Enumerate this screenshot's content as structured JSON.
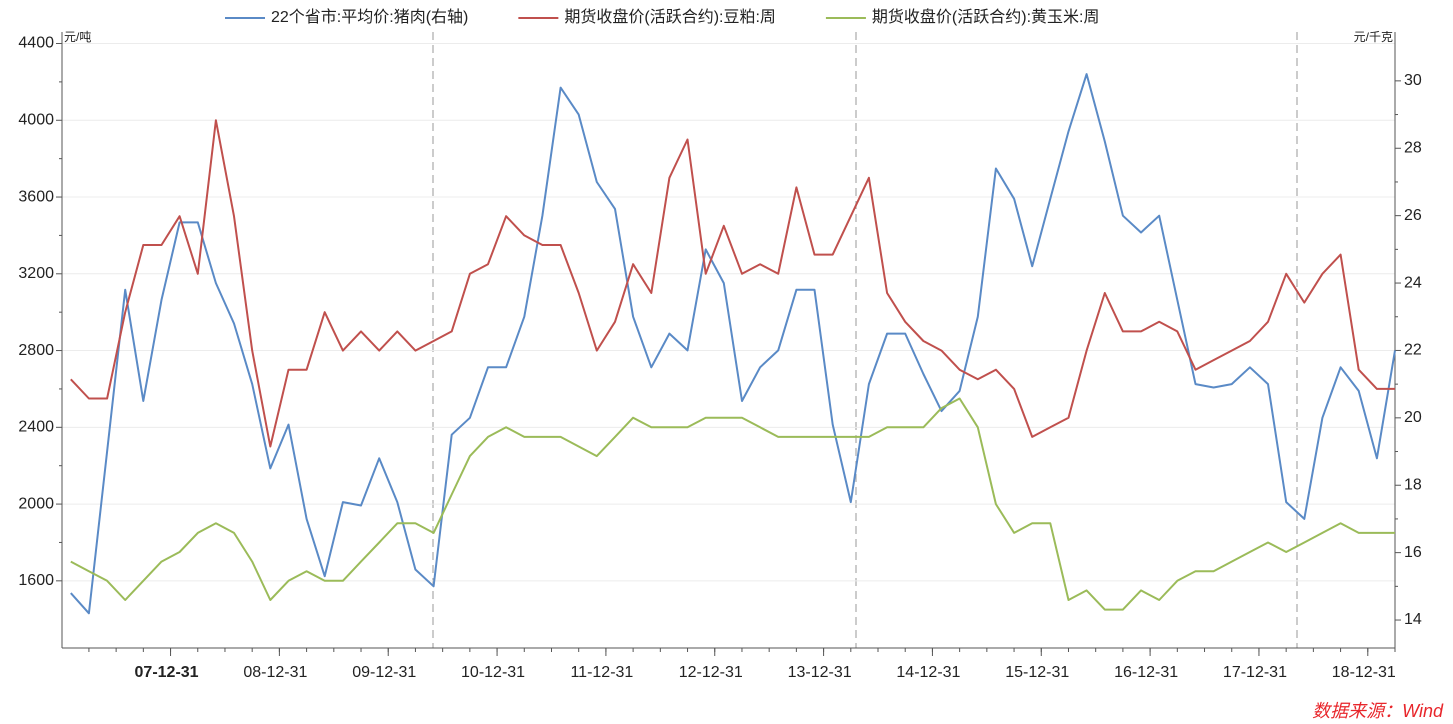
{
  "chart_data": {
    "type": "line",
    "y_label": "元/吨",
    "y2_label": "元/千克",
    "source": "数据来源：Wind",
    "x": [
      "07-01-31",
      "07-03-31",
      "07-05-31",
      "07-07-31",
      "07-09-30",
      "07-11-30",
      "08-01-31",
      "08-03-31",
      "08-05-31",
      "08-07-31",
      "08-09-30",
      "08-11-30",
      "09-01-31",
      "09-03-31",
      "09-05-31",
      "09-07-31",
      "09-09-30",
      "09-11-30",
      "10-01-31",
      "10-03-31",
      "10-05-31",
      "10-07-31",
      "10-09-30",
      "10-11-30",
      "11-01-31",
      "11-03-31",
      "11-05-31",
      "11-07-31",
      "11-09-30",
      "11-11-30",
      "12-01-31",
      "12-03-31",
      "12-05-31",
      "12-07-31",
      "12-09-30",
      "12-11-30",
      "13-01-31",
      "13-03-31",
      "13-05-31",
      "13-07-31",
      "13-09-30",
      "13-11-30",
      "14-01-31",
      "14-03-31",
      "14-05-31",
      "14-07-31",
      "14-09-30",
      "14-11-30",
      "15-01-31",
      "15-03-31",
      "15-05-31",
      "15-07-31",
      "15-09-30",
      "15-11-30",
      "16-01-31",
      "16-03-31",
      "16-05-31",
      "16-07-31",
      "16-09-30",
      "16-11-30",
      "17-01-31",
      "17-03-31",
      "17-05-31",
      "17-07-31",
      "17-09-30",
      "17-11-30",
      "18-01-31",
      "18-03-31",
      "18-05-31",
      "18-07-31",
      "18-09-30",
      "18-11-30",
      "19-01-31",
      "19-03-31"
    ],
    "xlim": [
      "07-01-01",
      "19-03-31"
    ],
    "xticks": [
      "07-12-31",
      "08-12-31",
      "09-12-31",
      "10-12-31",
      "11-12-31",
      "12-12-31",
      "13-12-31",
      "14-12-31",
      "15-12-31",
      "16-12-31",
      "17-12-31",
      "18-12-31"
    ],
    "ylim": [
      1250,
      4460
    ],
    "yticks": [
      1600,
      2000,
      2400,
      2800,
      3200,
      3600,
      4000,
      4400
    ],
    "y2lim": [
      13.17,
      31.45
    ],
    "y2ticks": [
      14,
      16,
      18,
      20,
      22,
      24,
      26,
      28,
      30
    ],
    "grid": true,
    "legend": "top",
    "series": [
      {
        "name": "22个省市:平均价:猪肉(右轴)",
        "color": "#5a8ac6",
        "axis": "y2",
        "values": [
          14.8,
          14.2,
          19,
          23.8,
          20.5,
          23.5,
          25.8,
          25.8,
          24,
          22.8,
          21,
          18.5,
          19.8,
          17,
          15.3,
          17.5,
          17.4,
          18.8,
          17.5,
          15.5,
          15,
          19.5,
          20,
          21.5,
          21.5,
          23,
          26,
          29.8,
          29,
          27,
          26.2,
          23,
          21.5,
          22.5,
          22,
          25,
          24,
          20.5,
          21.5,
          22,
          23.8,
          23.8,
          19.8,
          17.5,
          21,
          22.5,
          22.5,
          21.3,
          20.2,
          20.8,
          23,
          27.4,
          26.5,
          24.5,
          26.5,
          28.5,
          30.2,
          28.2,
          26,
          25.5,
          26,
          23.5,
          21,
          20.9,
          21,
          21.5,
          21,
          17.5,
          17,
          20,
          21.5,
          20.8,
          18.8,
          22
        ]
      },
      {
        "name": "期货收盘价(活跃合约):豆粕:周",
        "color": "#c0504d",
        "values": [
          2650,
          2550,
          2550,
          3000,
          3350,
          3350,
          3500,
          3200,
          4000,
          3500,
          2800,
          2300,
          2700,
          2700,
          3000,
          2800,
          2900,
          2800,
          2900,
          2800,
          2850,
          2900,
          3200,
          3250,
          3500,
          3400,
          3350,
          3350,
          3100,
          2800,
          2950,
          3250,
          3100,
          3700,
          3900,
          3200,
          3450,
          3200,
          3250,
          3200,
          3650,
          3300,
          3300,
          3500,
          3700,
          3100,
          2950,
          2850,
          2800,
          2700,
          2650,
          2700,
          2600,
          2350,
          2400,
          2450,
          2800,
          3100,
          2900,
          2900,
          2950,
          2900,
          2700,
          2750,
          2800,
          2850,
          2950,
          3200,
          3050,
          3200,
          3300,
          2700,
          2600,
          2600
        ]
      },
      {
        "name": "期货收盘价(活跃合约):黄玉米:周",
        "color": "#9bbb59",
        "values": [
          1700,
          1650,
          1600,
          1500,
          1600,
          1700,
          1750,
          1850,
          1900,
          1850,
          1700,
          1500,
          1600,
          1650,
          1600,
          1600,
          1700,
          1800,
          1900,
          1900,
          1850,
          2050,
          2250,
          2350,
          2400,
          2350,
          2350,
          2350,
          2300,
          2250,
          2350,
          2450,
          2400,
          2400,
          2400,
          2450,
          2450,
          2450,
          2400,
          2350,
          2350,
          2350,
          2350,
          2350,
          2350,
          2400,
          2400,
          2400,
          2500,
          2550,
          2400,
          2000,
          1850,
          1900,
          1900,
          1500,
          1550,
          1450,
          1450,
          1550,
          1500,
          1600,
          1650,
          1650,
          1700,
          1750,
          1800,
          1750,
          1800,
          1850,
          1900,
          1850,
          1850,
          1850
        ]
      }
    ]
  }
}
